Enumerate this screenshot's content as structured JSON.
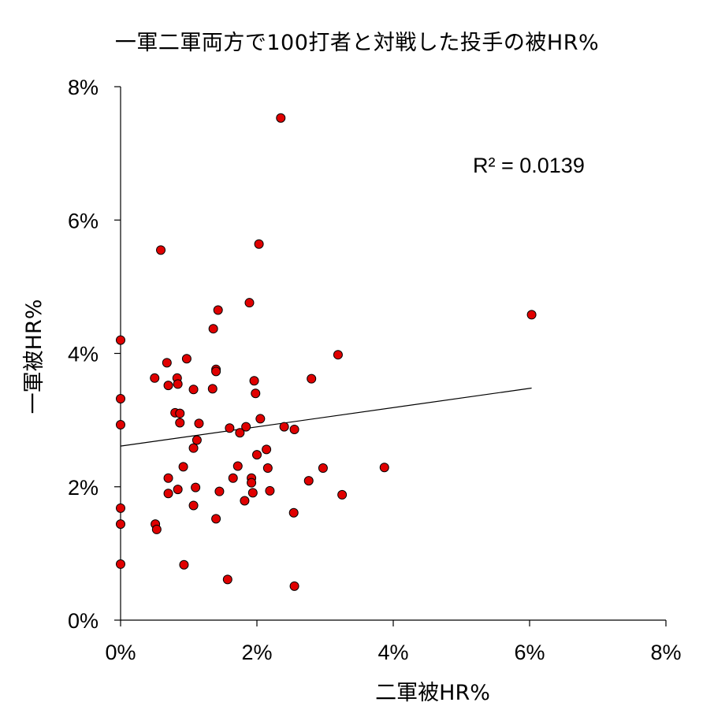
{
  "chart_data": {
    "type": "scatter",
    "title": "一軍二軍両方で100打者と対戦した投手の被HR%",
    "xlabel": "二軍被HR%",
    "ylabel": "一軍被HR%",
    "xlim": [
      0,
      8
    ],
    "ylim": [
      0,
      8
    ],
    "xticks": [
      0,
      2,
      4,
      6,
      8
    ],
    "yticks": [
      0,
      2,
      4,
      6,
      8
    ],
    "x_tick_labels": [
      "0%",
      "2%",
      "4%",
      "6%",
      "8%"
    ],
    "y_tick_labels": [
      "0%",
      "2%",
      "4%",
      "6%",
      "8%"
    ],
    "annotation": "R² = 0.0139",
    "grid": false,
    "marker_color": "#e00000",
    "marker_edge": "#000000",
    "trendline": {
      "x": [
        0,
        6.03
      ],
      "y": [
        2.61,
        3.48
      ]
    },
    "points": [
      {
        "x": 0.0,
        "y": 4.2
      },
      {
        "x": 0.0,
        "y": 3.32
      },
      {
        "x": 0.0,
        "y": 2.93
      },
      {
        "x": 0.0,
        "y": 1.68
      },
      {
        "x": 0.0,
        "y": 1.44
      },
      {
        "x": 0.0,
        "y": 0.84
      },
      {
        "x": 0.5,
        "y": 3.63
      },
      {
        "x": 0.51,
        "y": 1.44
      },
      {
        "x": 0.53,
        "y": 1.36
      },
      {
        "x": 0.59,
        "y": 5.55
      },
      {
        "x": 0.68,
        "y": 3.86
      },
      {
        "x": 0.7,
        "y": 3.52
      },
      {
        "x": 0.7,
        "y": 2.13
      },
      {
        "x": 0.7,
        "y": 1.9
      },
      {
        "x": 0.8,
        "y": 3.11
      },
      {
        "x": 0.83,
        "y": 3.63
      },
      {
        "x": 0.84,
        "y": 3.54
      },
      {
        "x": 0.84,
        "y": 1.96
      },
      {
        "x": 0.87,
        "y": 3.1
      },
      {
        "x": 0.87,
        "y": 2.96
      },
      {
        "x": 0.92,
        "y": 2.3
      },
      {
        "x": 0.93,
        "y": 0.83
      },
      {
        "x": 0.97,
        "y": 3.92
      },
      {
        "x": 1.07,
        "y": 3.46
      },
      {
        "x": 1.07,
        "y": 2.58
      },
      {
        "x": 1.07,
        "y": 1.72
      },
      {
        "x": 1.1,
        "y": 1.99
      },
      {
        "x": 1.12,
        "y": 2.7
      },
      {
        "x": 1.15,
        "y": 2.95
      },
      {
        "x": 1.35,
        "y": 3.47
      },
      {
        "x": 1.36,
        "y": 4.37
      },
      {
        "x": 1.4,
        "y": 3.76
      },
      {
        "x": 1.4,
        "y": 3.73
      },
      {
        "x": 1.4,
        "y": 1.52
      },
      {
        "x": 1.43,
        "y": 4.65
      },
      {
        "x": 1.45,
        "y": 1.93
      },
      {
        "x": 1.57,
        "y": 0.61
      },
      {
        "x": 1.6,
        "y": 2.88
      },
      {
        "x": 1.65,
        "y": 2.13
      },
      {
        "x": 1.72,
        "y": 2.31
      },
      {
        "x": 1.75,
        "y": 2.81
      },
      {
        "x": 1.82,
        "y": 1.79
      },
      {
        "x": 1.84,
        "y": 2.9
      },
      {
        "x": 1.89,
        "y": 4.76
      },
      {
        "x": 1.92,
        "y": 2.13
      },
      {
        "x": 1.92,
        "y": 2.06
      },
      {
        "x": 1.94,
        "y": 1.91
      },
      {
        "x": 1.96,
        "y": 3.59
      },
      {
        "x": 1.98,
        "y": 3.4
      },
      {
        "x": 2.0,
        "y": 2.48
      },
      {
        "x": 2.03,
        "y": 5.64
      },
      {
        "x": 2.05,
        "y": 3.02
      },
      {
        "x": 2.14,
        "y": 2.56
      },
      {
        "x": 2.16,
        "y": 2.28
      },
      {
        "x": 2.19,
        "y": 1.94
      },
      {
        "x": 2.35,
        "y": 7.53
      },
      {
        "x": 2.4,
        "y": 2.9
      },
      {
        "x": 2.54,
        "y": 1.61
      },
      {
        "x": 2.55,
        "y": 2.86
      },
      {
        "x": 2.55,
        "y": 0.51
      },
      {
        "x": 2.76,
        "y": 2.09
      },
      {
        "x": 2.8,
        "y": 3.62
      },
      {
        "x": 2.97,
        "y": 2.28
      },
      {
        "x": 3.19,
        "y": 3.98
      },
      {
        "x": 3.25,
        "y": 1.88
      },
      {
        "x": 3.87,
        "y": 2.29
      },
      {
        "x": 6.03,
        "y": 4.58
      }
    ]
  }
}
